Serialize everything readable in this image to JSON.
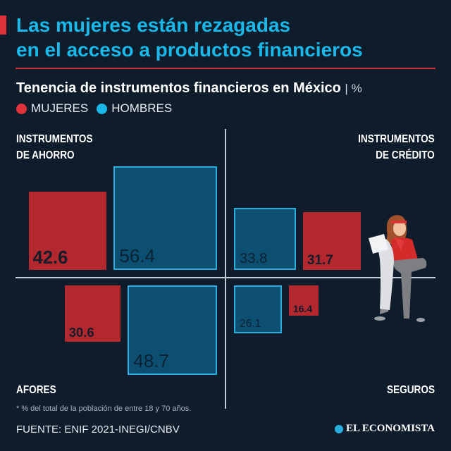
{
  "title_lines": [
    "Las mujeres están rezagadas",
    "en el acceso a productos financieros"
  ],
  "subtitle": "Tenencia de instrumentos financieros en México",
  "unit": "%",
  "colors": {
    "mujeres": "#b3282f",
    "hombres": "#0d4f70",
    "hombres_border": "#2aaee0",
    "title": "#1ab8e8",
    "background": "#0f1c2c"
  },
  "chart_data": {
    "type": "bar",
    "title": "Tenencia de instrumentos financieros en México",
    "unit": "%",
    "legend": [
      {
        "name": "MUJERES",
        "color": "#e0323a"
      },
      {
        "name": "HOMBRES",
        "color": "#1ab8e8"
      }
    ],
    "legend_placement": "top-left",
    "encoding": "square side proportional to value",
    "categories": [
      {
        "label": [
          "INSTRUMENTOS",
          "DE AHORRO"
        ],
        "quadrant": "top-left"
      },
      {
        "label": [
          "INSTRUMENTOS",
          "DE CRÉDITO"
        ],
        "quadrant": "top-right"
      },
      {
        "label": [
          "AFORES"
        ],
        "quadrant": "bottom-left"
      },
      {
        "label": [
          "SEGUROS"
        ],
        "quadrant": "bottom-right"
      }
    ],
    "series": [
      {
        "name": "MUJERES",
        "values": [
          42.6,
          31.7,
          30.6,
          16.4
        ],
        "labels": [
          "42.6",
          "31.7",
          "30.6",
          "16.4"
        ]
      },
      {
        "name": "HOMBRES",
        "values": [
          56.4,
          33.8,
          48.7,
          26.1
        ],
        "labels": [
          "56.4",
          "33.8",
          "48.7",
          "26.1"
        ]
      }
    ]
  },
  "footnote": "* % del total de la población de entre 18 y 70 años.",
  "source": "FUENTE: ENIF 2021-INEGI/CNBV",
  "brand": "EL ECONOMISTA"
}
